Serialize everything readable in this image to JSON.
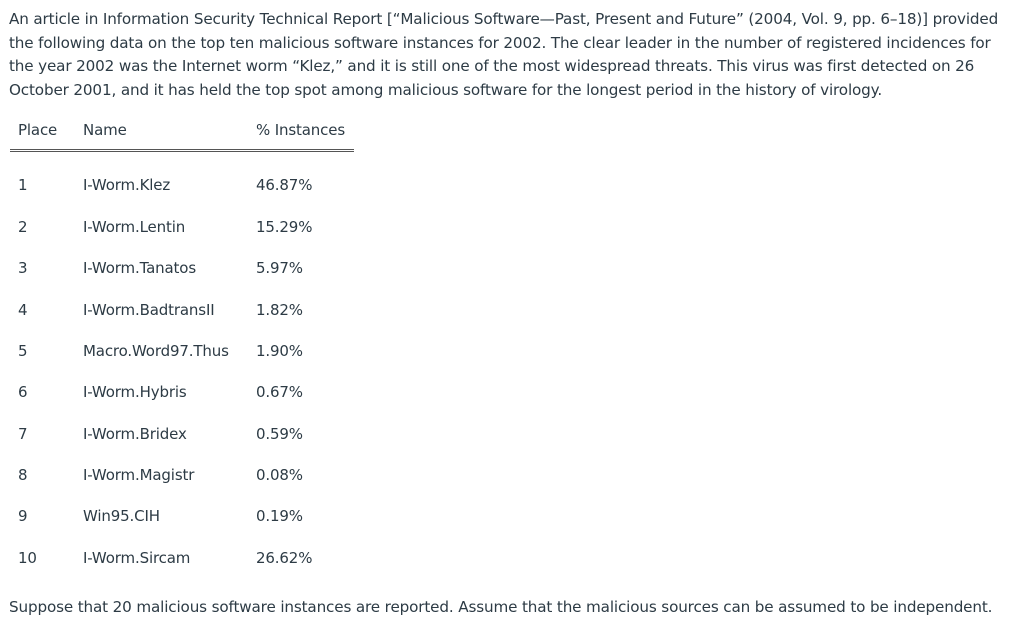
{
  "intro": {
    "text": "An article in Information Security Technical Report [“Malicious Software—Past, Present and Future” (2004, Vol. 9, pp. 6–18)] provided the following data on the top ten malicious software instances for 2002. The clear leader in the number of registered incidences for the year 2002 was the Internet worm “Klez,” and it is still one of the most widespread threats. This virus was first detected on 26 October 2001, and it has held the top spot among malicious software for the longest period in the history of virology."
  },
  "table": {
    "headers": {
      "place": "Place",
      "name": "Name",
      "percent": "% Instances"
    },
    "rows": [
      {
        "place": "1",
        "name": "I-Worm.Klez",
        "percent": "46.87%"
      },
      {
        "place": "2",
        "name": "I-Worm.Lentin",
        "percent": "15.29%"
      },
      {
        "place": "3",
        "name": "I-Worm.Tanatos",
        "percent": "5.97%"
      },
      {
        "place": "4",
        "name": "I-Worm.BadtransII",
        "percent": "1.82%"
      },
      {
        "place": "5",
        "name": "Macro.Word97.Thus",
        "percent": "1.90%"
      },
      {
        "place": "6",
        "name": "I-Worm.Hybris",
        "percent": "0.67%"
      },
      {
        "place": "7",
        "name": "I-Worm.Bridex",
        "percent": "0.59%"
      },
      {
        "place": "8",
        "name": "I-Worm.Magistr",
        "percent": "0.08%"
      },
      {
        "place": "9",
        "name": "Win95.CIH",
        "percent": "0.19%"
      },
      {
        "place": "10",
        "name": "I-Worm.Sircam",
        "percent": "26.62%"
      }
    ]
  },
  "closing": {
    "text": "Suppose that 20 malicious software instances are reported. Assume that the malicious sources can be assumed to be independent."
  }
}
